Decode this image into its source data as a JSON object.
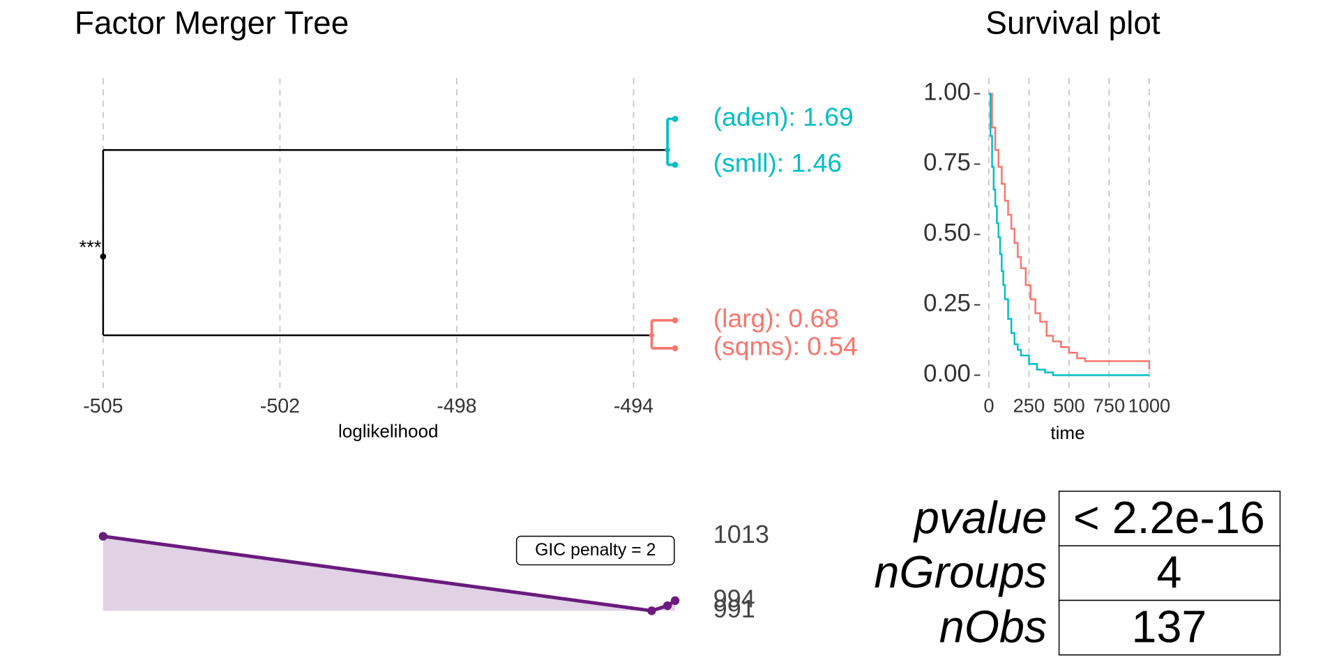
{
  "chart_data": [
    {
      "type": "tree",
      "title": "Factor Merger Tree",
      "xlabel": "loglikelihood",
      "xlim": [
        -505.3,
        -493.33
      ],
      "xticks": [
        {
          "value": -505.3,
          "label": "-505"
        },
        {
          "value": -501.6,
          "label": "-502"
        },
        {
          "value": -497.9,
          "label": "-498"
        },
        {
          "value": -494.2,
          "label": "-494"
        }
      ],
      "ylim": [
        0.405,
        1.816
      ],
      "grid": true,
      "leaf_x": -493.33,
      "root": {
        "x": -505.3,
        "y": 1.0,
        "label": "***"
      },
      "series": [
        {
          "color": "#00BFC4",
          "values": [
            1.69,
            1.46
          ],
          "value_labels": [
            "(aden): 1.69",
            "(smll): 1.46"
          ],
          "merge_x": -493.49,
          "merge_y": 1.534
        },
        {
          "color": "#F8766D",
          "values": [
            0.68,
            0.54
          ],
          "value_labels": [
            "(larg): 0.68",
            "(sqms): 0.54"
          ],
          "merge_x": -493.82,
          "merge_y": 0.605
        }
      ]
    },
    {
      "type": "step",
      "title": "Survival plot",
      "xlabel": "time",
      "xlim": [
        0,
        1000
      ],
      "xticks": [
        0,
        250,
        500,
        750,
        1000
      ],
      "ylim": [
        0,
        1
      ],
      "yticks": [
        {
          "value": 0,
          "label": "0.00"
        },
        {
          "value": 0.25,
          "label": "0.25"
        },
        {
          "value": 0.5,
          "label": "0.50"
        },
        {
          "value": 0.75,
          "label": "0.75"
        },
        {
          "value": 1,
          "label": "1.00"
        }
      ],
      "grid": true,
      "series": [
        {
          "color": "#F8766D",
          "x": [
            0,
            20,
            40,
            60,
            80,
            100,
            120,
            140,
            160,
            180,
            200,
            230,
            260,
            290,
            320,
            360,
            400,
            450,
            500,
            550,
            600,
            999,
            1000
          ],
          "values": [
            1.0,
            0.88,
            0.8,
            0.74,
            0.68,
            0.62,
            0.57,
            0.52,
            0.47,
            0.42,
            0.38,
            0.32,
            0.27,
            0.22,
            0.19,
            0.14,
            0.12,
            0.1,
            0.08,
            0.06,
            0.05,
            0.05,
            0.02
          ]
        },
        {
          "color": "#00BFC4",
          "x": [
            0,
            10,
            20,
            30,
            40,
            50,
            60,
            70,
            80,
            90,
            100,
            120,
            140,
            160,
            180,
            200,
            250,
            300,
            350,
            400,
            1000
          ],
          "values": [
            1.0,
            0.85,
            0.74,
            0.66,
            0.6,
            0.54,
            0.49,
            0.43,
            0.37,
            0.32,
            0.27,
            0.2,
            0.15,
            0.11,
            0.09,
            0.07,
            0.04,
            0.02,
            0.01,
            0.0,
            0.0
          ]
        }
      ]
    },
    {
      "type": "area",
      "xlim": [
        -505.3,
        -493.33
      ],
      "ylim": [
        991,
        1013
      ],
      "x": [
        -493.33,
        -493.49,
        -493.82,
        -505.3
      ],
      "values": [
        994,
        992.5,
        991,
        1013
      ],
      "value_labels": [
        "994",
        null,
        "991",
        "1013"
      ],
      "color": "#6A1B7E",
      "fill": "#E0D1E4",
      "annotation": "GIC penalty = 2"
    },
    {
      "type": "table",
      "rows": [
        [
          "pvalue",
          "< 2.2e-16"
        ],
        [
          "nGroups",
          "4"
        ],
        [
          "nObs",
          "137"
        ]
      ]
    }
  ]
}
